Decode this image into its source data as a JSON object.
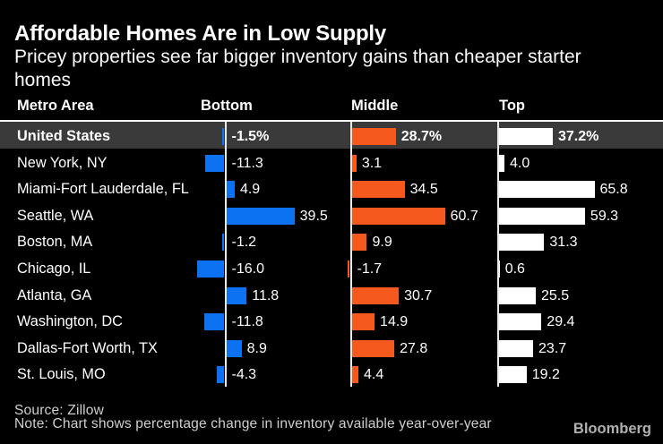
{
  "title": "Affordable Homes Are in Low Supply",
  "subtitle": "Pricey properties see far bigger inventory gains than cheaper starter homes",
  "headers": {
    "metro": "Metro Area",
    "bottom": "Bottom",
    "middle": "Middle",
    "top": "Top"
  },
  "colors": {
    "bottom_bar": "#0d72f2",
    "middle_bar": "#f6591d",
    "top_bar": "#ffffff",
    "highlight_row_bg": "#3a3a3a",
    "header_rule": "#ffffff",
    "axis_line": "#e9e9e9",
    "footer_text": "#cfcfcf",
    "brand_text": "#b0b0b0"
  },
  "chart_data": {
    "type": "bar",
    "orientation": "horizontal",
    "title": "Affordable Homes Are in Low Supply",
    "subtitle": "Pricey properties see far bigger inventory gains than cheaper starter homes",
    "note": "Values are percentage change in inventory available year-over-year",
    "categories": [
      "United States",
      "New York, NY",
      "Miami-Fort Lauderdale, FL",
      "Seattle, WA",
      "Boston, MA",
      "Chicago, IL",
      "Atlanta, GA",
      "Washington, DC",
      "Dallas-Fort Worth, TX",
      "St. Louis, MO"
    ],
    "highlight_category": "United States",
    "series": [
      {
        "name": "Bottom",
        "values": [
          -1.5,
          -11.3,
          4.9,
          39.5,
          -1.2,
          -16.0,
          11.8,
          -11.8,
          8.9,
          -4.3
        ],
        "labels": [
          "-1.5%",
          "-11.3",
          "4.9",
          "39.5",
          "-1.2",
          "-16.0",
          "11.8",
          "-11.8",
          "8.9",
          "-4.3"
        ]
      },
      {
        "name": "Middle",
        "values": [
          28.7,
          3.1,
          34.5,
          60.7,
          9.9,
          -1.7,
          30.7,
          14.9,
          27.8,
          4.4
        ],
        "labels": [
          "28.7%",
          "3.1",
          "34.5",
          "60.7",
          "9.9",
          "-1.7",
          "30.7",
          "14.9",
          "27.8",
          "4.4"
        ]
      },
      {
        "name": "Top",
        "values": [
          37.2,
          4.0,
          65.8,
          59.3,
          31.3,
          0.6,
          25.5,
          29.4,
          23.7,
          19.2
        ],
        "labels": [
          "37.2%",
          "4.0",
          "65.8",
          "59.3",
          "31.3",
          "0.6",
          "25.5",
          "29.4",
          "23.7",
          "19.2"
        ]
      }
    ]
  },
  "footer": {
    "source": "Source: Zillow",
    "note": "Note: Chart shows percentage change in inventory available year-over-year",
    "brand": "Bloomberg"
  }
}
